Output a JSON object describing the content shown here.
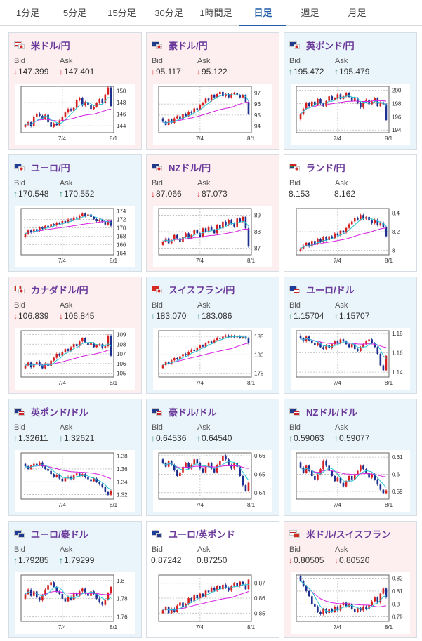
{
  "tabs": [
    {
      "label": "1分足",
      "active": false
    },
    {
      "label": "5分足",
      "active": false
    },
    {
      "label": "15分足",
      "active": false
    },
    {
      "label": "30分足",
      "active": false
    },
    {
      "label": "1時間足",
      "active": false
    },
    {
      "label": "日足",
      "active": true
    },
    {
      "label": "週足",
      "active": false
    },
    {
      "label": "月足",
      "active": false
    }
  ],
  "labels": {
    "bid": "Bid",
    "ask": "Ask"
  },
  "colors": {
    "down_bg": "#fdeef0",
    "up_bg": "#eaf4fb",
    "title": "#6a3a9a",
    "candle_up": "#d42020",
    "candle_down": "#1d2f8f",
    "ma_short": "#27c4d6",
    "ma_long": "#d61ee0",
    "arrow_down": "#d23030",
    "arrow_up": "#2e8c6b"
  },
  "pairs": [
    {
      "name": "米ドル/円",
      "flag": "us-jp-flag-icon",
      "direction": "down",
      "bid": "147.399",
      "ask": "147.401",
      "chart_data": {
        "type": "candlestick",
        "x_labels": [
          "7/4",
          "8/1"
        ],
        "y_ticks": [
          "150",
          "148",
          "146",
          "144"
        ],
        "ylim": [
          142.8,
          150.8
        ],
        "closes": [
          144.2,
          144.6,
          143.9,
          145.6,
          146.1,
          145.7,
          145.2,
          145.9,
          144.6,
          143.8,
          144.4,
          144.1,
          144.9,
          145.5,
          146.3,
          146.9,
          146.6,
          147.1,
          148.4,
          148.8,
          147.5,
          148.1,
          147.6,
          146.9,
          147.3,
          147.9,
          148.6,
          147.9,
          149.4,
          150.6,
          147.4
        ]
      }
    },
    {
      "name": "豪ドル/円",
      "flag": "au-jp-flag-icon",
      "direction": "down",
      "bid": "95.117",
      "ask": "95.122",
      "chart_data": {
        "type": "candlestick",
        "x_labels": [
          "7/4",
          "8/1"
        ],
        "y_ticks": [
          "97",
          "96",
          "95",
          "94"
        ],
        "ylim": [
          93.4,
          97.6
        ],
        "closes": [
          94.4,
          94.1,
          94.6,
          94.3,
          94.7,
          94.9,
          94.6,
          95.1,
          94.9,
          95.3,
          95.2,
          95.6,
          95.5,
          95.9,
          96.1,
          96.5,
          96.3,
          96.8,
          96.6,
          96.9,
          97.1,
          96.7,
          96.9,
          96.6,
          96.9,
          97.0,
          96.8,
          96.6,
          96.8,
          96.2,
          95.1
        ]
      }
    },
    {
      "name": "英ポンド/円",
      "flag": "gb-jp-flag-icon",
      "direction": "up",
      "bid": "195.472",
      "ask": "195.479",
      "chart_data": {
        "type": "candlestick",
        "x_labels": [
          "7/4",
          "8/1"
        ],
        "y_ticks": [
          "200",
          "198",
          "196",
          "194"
        ],
        "ylim": [
          193.6,
          200.6
        ],
        "closes": [
          196.4,
          197.2,
          198.1,
          197.6,
          198.3,
          197.8,
          198.7,
          198.0,
          197.6,
          198.4,
          199.1,
          198.6,
          198.8,
          199.4,
          198.7,
          199.1,
          199.6,
          199.0,
          198.4,
          198.8,
          198.1,
          197.4,
          198.2,
          198.6,
          197.9,
          198.3,
          198.8,
          197.6,
          198.2,
          197.9,
          195.5
        ]
      }
    },
    {
      "name": "ユーロ/円",
      "flag": "eu-jp-flag-icon",
      "direction": "up",
      "bid": "170.548",
      "ask": "170.552",
      "chart_data": {
        "type": "candlestick",
        "x_labels": [
          "7/4",
          "8/1"
        ],
        "y_ticks": [
          "174",
          "172",
          "170",
          "168",
          "166",
          "164"
        ],
        "ylim": [
          163.6,
          174.6
        ],
        "closes": [
          168.6,
          169.4,
          168.9,
          169.7,
          169.3,
          170.1,
          169.8,
          170.5,
          170.2,
          170.9,
          170.6,
          171.2,
          170.9,
          171.6,
          171.3,
          172.0,
          171.8,
          172.5,
          172.2,
          172.9,
          173.4,
          172.8,
          173.2,
          172.6,
          172.1,
          171.6,
          171.9,
          171.4,
          170.8,
          171.7,
          170.5
        ]
      }
    },
    {
      "name": "NZドル/円",
      "flag": "nz-jp-flag-icon",
      "direction": "down",
      "bid": "87.066",
      "ask": "87.073",
      "chart_data": {
        "type": "candlestick",
        "x_labels": [
          "7/4",
          "8/1"
        ],
        "y_ticks": [
          "89",
          "88",
          "87"
        ],
        "ylim": [
          86.6,
          89.4
        ],
        "closes": [
          87.4,
          87.6,
          87.3,
          87.5,
          87.8,
          87.6,
          87.4,
          87.7,
          87.9,
          87.6,
          87.8,
          88.1,
          87.9,
          87.7,
          88.2,
          88.0,
          88.3,
          88.1,
          87.9,
          88.4,
          88.2,
          88.6,
          88.4,
          88.7,
          88.5,
          88.3,
          88.8,
          88.6,
          88.9,
          88.2,
          87.1
        ]
      }
    },
    {
      "name": "ランド/円",
      "flag": "za-jp-flag-icon",
      "direction": "neutral",
      "bid": "8.153",
      "ask": "8.162",
      "chart_data": {
        "type": "candlestick",
        "x_labels": [
          "7/4",
          "8/1"
        ],
        "y_ticks": [
          "8.4",
          "8.2",
          "8"
        ],
        "ylim": [
          7.95,
          8.45
        ],
        "closes": [
          8.02,
          8.05,
          8.08,
          8.04,
          8.1,
          8.07,
          8.12,
          8.09,
          8.14,
          8.11,
          8.15,
          8.13,
          8.18,
          8.16,
          8.21,
          8.19,
          8.24,
          8.28,
          8.31,
          8.35,
          8.33,
          8.38,
          8.34,
          8.36,
          8.32,
          8.29,
          8.33,
          8.27,
          8.3,
          8.25,
          8.15
        ]
      }
    },
    {
      "name": "カナダドル/円",
      "flag": "ca-jp-flag-icon",
      "direction": "down",
      "bid": "106.839",
      "ask": "106.845",
      "chart_data": {
        "type": "candlestick",
        "x_labels": [
          "7/4",
          "8/1"
        ],
        "y_ticks": [
          "109",
          "108",
          "107",
          "106",
          "105"
        ],
        "ylim": [
          104.6,
          109.4
        ],
        "closes": [
          105.8,
          106.1,
          105.6,
          105.9,
          106.2,
          105.8,
          105.5,
          106.0,
          105.7,
          106.3,
          106.6,
          107.0,
          106.8,
          107.2,
          107.5,
          107.3,
          107.7,
          108.0,
          107.8,
          108.3,
          108.6,
          108.2,
          107.9,
          108.1,
          107.7,
          107.9,
          108.0,
          107.6,
          107.8,
          108.9,
          106.8
        ]
      }
    },
    {
      "name": "スイスフラン/円",
      "flag": "ch-jp-flag-icon",
      "direction": "up",
      "bid": "183.070",
      "ask": "183.086",
      "chart_data": {
        "type": "candlestick",
        "x_labels": [
          "7/4",
          "8/1"
        ],
        "y_ticks": [
          "185",
          "180",
          "175"
        ],
        "ylim": [
          174.0,
          186.5
        ],
        "closes": [
          177.2,
          178.0,
          177.6,
          178.5,
          179.1,
          178.8,
          179.6,
          180.2,
          179.9,
          180.8,
          181.4,
          181.0,
          181.9,
          182.5,
          182.2,
          183.1,
          183.6,
          183.3,
          184.0,
          184.6,
          184.3,
          184.9,
          185.2,
          184.8,
          185.1,
          184.7,
          185.0,
          184.6,
          184.9,
          184.5,
          183.1
        ]
      }
    },
    {
      "name": "ユーロ/ドル",
      "flag": "eu-us-flag-icon",
      "direction": "up",
      "bid": "1.15704",
      "ask": "1.15707",
      "chart_data": {
        "type": "candlestick",
        "x_labels": [
          "7/4",
          "8/1"
        ],
        "y_ticks": [
          "1.18",
          "1.16",
          "1.14"
        ],
        "ylim": [
          1.135,
          1.183
        ],
        "closes": [
          1.175,
          1.172,
          1.177,
          1.173,
          1.17,
          1.168,
          1.17,
          1.166,
          1.164,
          1.168,
          1.165,
          1.169,
          1.172,
          1.17,
          1.174,
          1.172,
          1.169,
          1.166,
          1.169,
          1.164,
          1.162,
          1.166,
          1.169,
          1.172,
          1.174,
          1.17,
          1.166,
          1.159,
          1.147,
          1.142,
          1.157
        ]
      }
    },
    {
      "name": "英ポンド/ドル",
      "flag": "gb-us-flag-icon",
      "direction": "up",
      "bid": "1.32611",
      "ask": "1.32621",
      "chart_data": {
        "type": "candlestick",
        "x_labels": [
          "7/4",
          "8/1"
        ],
        "y_ticks": [
          "1.38",
          "1.36",
          "1.34",
          "1.32"
        ],
        "ylim": [
          1.313,
          1.385
        ],
        "closes": [
          1.364,
          1.36,
          1.365,
          1.368,
          1.366,
          1.37,
          1.364,
          1.36,
          1.357,
          1.352,
          1.348,
          1.351,
          1.345,
          1.341,
          1.346,
          1.348,
          1.344,
          1.35,
          1.353,
          1.349,
          1.352,
          1.347,
          1.344,
          1.341,
          1.345,
          1.34,
          1.336,
          1.332,
          1.324,
          1.32,
          1.3261
        ]
      }
    },
    {
      "name": "豪ドル/ドル",
      "flag": "au-us-flag-icon",
      "direction": "up",
      "bid": "0.64536",
      "ask": "0.64540",
      "chart_data": {
        "type": "candlestick",
        "x_labels": [
          "7/4",
          "8/1"
        ],
        "y_ticks": [
          "0.66",
          "0.65",
          "0.64"
        ],
        "ylim": [
          0.6365,
          0.6615
        ],
        "closes": [
          0.656,
          0.654,
          0.657,
          0.655,
          0.652,
          0.649,
          0.651,
          0.654,
          0.656,
          0.653,
          0.655,
          0.658,
          0.656,
          0.653,
          0.651,
          0.654,
          0.656,
          0.653,
          0.651,
          0.655,
          0.657,
          0.66,
          0.658,
          0.655,
          0.653,
          0.656,
          0.654,
          0.649,
          0.644,
          0.641,
          0.6454
        ]
      }
    },
    {
      "name": "NZドル/ドル",
      "flag": "nz-us-flag-icon",
      "direction": "up",
      "bid": "0.59063",
      "ask": "0.59077",
      "chart_data": {
        "type": "candlestick",
        "x_labels": [
          "7/4",
          "8/1"
        ],
        "y_ticks": [
          "0.61",
          "0.6",
          "0.59"
        ],
        "ylim": [
          0.5855,
          0.6125
        ],
        "closes": [
          0.604,
          0.601,
          0.605,
          0.602,
          0.599,
          0.597,
          0.6,
          0.603,
          0.608,
          0.605,
          0.602,
          0.599,
          0.596,
          0.598,
          0.595,
          0.593,
          0.596,
          0.599,
          0.597,
          0.6,
          0.602,
          0.605,
          0.603,
          0.601,
          0.598,
          0.6,
          0.597,
          0.594,
          0.591,
          0.589,
          0.5906
        ]
      }
    },
    {
      "name": "ユーロ/豪ドル",
      "flag": "eu-au-flag-icon",
      "direction": "up",
      "bid": "1.79285",
      "ask": "1.79299",
      "chart_data": {
        "type": "candlestick",
        "x_labels": [
          "7/4",
          "8/1"
        ],
        "y_ticks": [
          "1.8",
          "1.78",
          "1.76"
        ],
        "ylim": [
          1.755,
          1.806
        ],
        "closes": [
          1.785,
          1.79,
          1.783,
          1.788,
          1.781,
          1.778,
          1.784,
          1.79,
          1.795,
          1.798,
          1.793,
          1.788,
          1.785,
          1.78,
          1.777,
          1.782,
          1.779,
          1.786,
          1.783,
          1.788,
          1.791,
          1.786,
          1.783,
          1.788,
          1.785,
          1.78,
          1.776,
          1.773,
          1.779,
          1.786,
          1.7929
        ]
      }
    },
    {
      "name": "ユーロ/英ポンド",
      "flag": "eu-gb-flag-icon",
      "direction": "neutral",
      "bid": "0.87242",
      "ask": "0.87250",
      "chart_data": {
        "type": "candlestick",
        "x_labels": [
          "7/4",
          "8/1"
        ],
        "y_ticks": [
          "0.87",
          "0.86",
          "0.85"
        ],
        "ylim": [
          0.8445,
          0.8755
        ],
        "closes": [
          0.852,
          0.854,
          0.85,
          0.853,
          0.851,
          0.855,
          0.857,
          0.854,
          0.856,
          0.86,
          0.858,
          0.862,
          0.86,
          0.863,
          0.861,
          0.865,
          0.864,
          0.867,
          0.865,
          0.868,
          0.866,
          0.869,
          0.867,
          0.865,
          0.868,
          0.87,
          0.868,
          0.871,
          0.869,
          0.866,
          0.8724
        ]
      }
    },
    {
      "name": "米ドル/スイスフラン",
      "flag": "us-ch-flag-icon",
      "direction": "down",
      "bid": "0.80505",
      "ask": "0.80520",
      "chart_data": {
        "type": "candlestick",
        "x_labels": [
          "7/4",
          "8/1"
        ],
        "y_ticks": [
          "0.82",
          "0.81",
          "0.8",
          "0.79"
        ],
        "ylim": [
          0.7865,
          0.8225
        ],
        "closes": [
          0.818,
          0.814,
          0.81,
          0.806,
          0.8,
          0.798,
          0.794,
          0.792,
          0.796,
          0.793,
          0.796,
          0.794,
          0.798,
          0.795,
          0.799,
          0.801,
          0.798,
          0.8,
          0.796,
          0.794,
          0.797,
          0.795,
          0.798,
          0.796,
          0.799,
          0.802,
          0.805,
          0.801,
          0.808,
          0.812,
          0.805
        ]
      }
    }
  ]
}
